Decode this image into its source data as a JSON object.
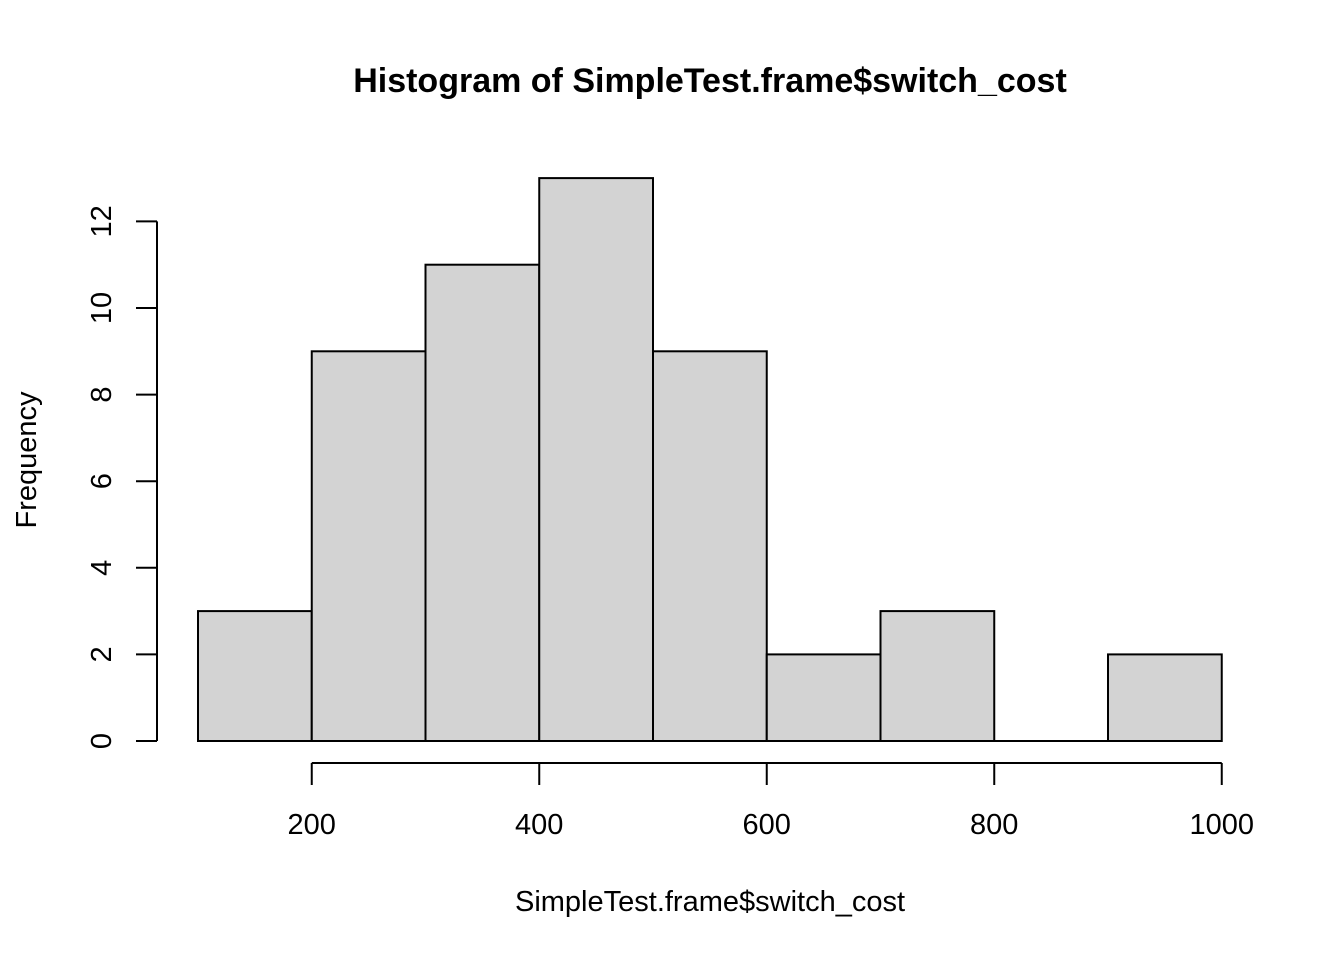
{
  "chart_data": {
    "type": "bar",
    "title": "Histogram of SimpleTest.frame$switch_cost",
    "xlabel": "SimpleTest.frame$switch_cost",
    "ylabel": "Frequency",
    "bins": [
      {
        "from": 100,
        "to": 200,
        "count": 3
      },
      {
        "from": 200,
        "to": 300,
        "count": 9
      },
      {
        "from": 300,
        "to": 400,
        "count": 11
      },
      {
        "from": 400,
        "to": 500,
        "count": 13
      },
      {
        "from": 500,
        "to": 600,
        "count": 9
      },
      {
        "from": 600,
        "to": 700,
        "count": 2
      },
      {
        "from": 700,
        "to": 800,
        "count": 3
      },
      {
        "from": 800,
        "to": 900,
        "count": 0
      },
      {
        "from": 900,
        "to": 1000,
        "count": 2
      }
    ],
    "xticks": [
      200,
      400,
      600,
      800,
      1000
    ],
    "yticks": [
      0,
      2,
      4,
      6,
      8,
      10,
      12
    ],
    "xlim": [
      100,
      1000
    ],
    "ylim": [
      0,
      13
    ],
    "grid": false,
    "legend": "none",
    "colors": {
      "bar_fill": "#d3d3d3",
      "bar_stroke": "#000000",
      "background": "#ffffff"
    }
  }
}
